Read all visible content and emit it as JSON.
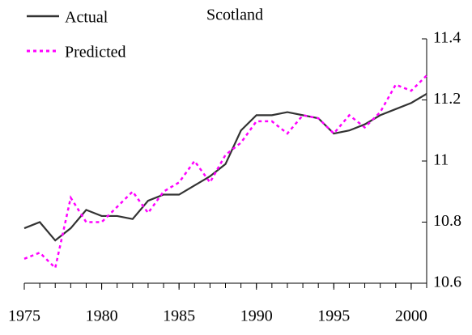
{
  "chart_data": {
    "type": "line",
    "title": "Scotland",
    "x": [
      1975,
      1976,
      1977,
      1978,
      1979,
      1980,
      1981,
      1982,
      1983,
      1984,
      1985,
      1986,
      1987,
      1988,
      1989,
      1990,
      1991,
      1992,
      1993,
      1994,
      1995,
      1996,
      1997,
      1998,
      1999,
      2000,
      2001
    ],
    "series": [
      {
        "name": "Actual",
        "color": "#333333",
        "dash": false,
        "values": [
          10.78,
          10.8,
          10.74,
          10.78,
          10.84,
          10.82,
          10.82,
          10.81,
          10.87,
          10.89,
          10.89,
          10.92,
          10.95,
          10.99,
          11.1,
          11.15,
          11.15,
          11.16,
          11.15,
          11.14,
          11.09,
          11.1,
          11.12,
          11.15,
          11.17,
          11.19,
          11.22
        ]
      },
      {
        "name": "Predicted",
        "color": "#ff00ff",
        "dash": true,
        "values": [
          10.68,
          10.7,
          10.65,
          10.88,
          10.8,
          10.8,
          10.85,
          10.9,
          10.83,
          10.9,
          10.93,
          11.0,
          10.93,
          11.02,
          11.06,
          11.13,
          11.13,
          11.09,
          11.15,
          11.14,
          11.09,
          11.15,
          11.11,
          11.16,
          11.25,
          11.23,
          11.28
        ]
      }
    ],
    "xlim": [
      1975,
      2001
    ],
    "xticks": [
      1975,
      1980,
      1985,
      1990,
      1995,
      2000
    ],
    "ylim": [
      10.6,
      11.4
    ],
    "yticks": [
      10.6,
      10.8,
      11,
      11.2,
      11.4
    ],
    "y_axis_side": "right",
    "legend": "top-left",
    "grid": false
  }
}
